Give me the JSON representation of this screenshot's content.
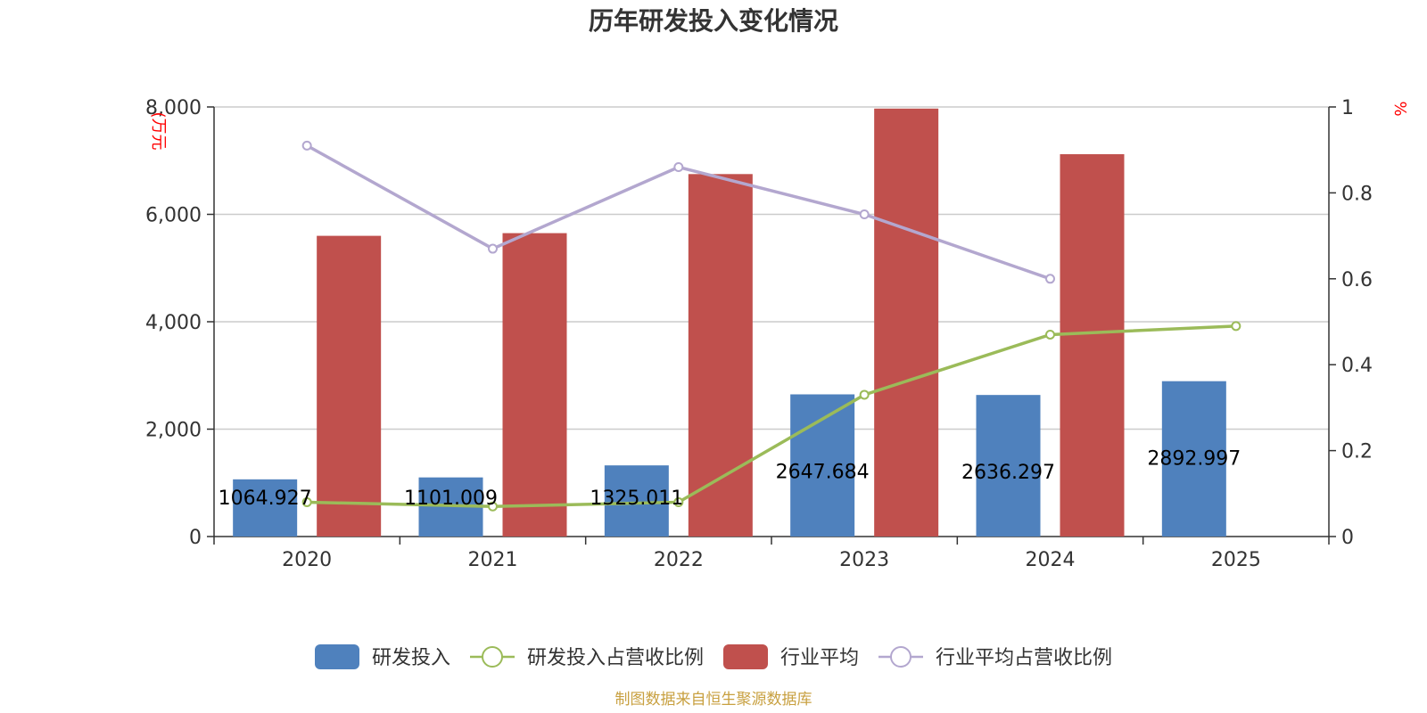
{
  "chart_data": {
    "type": "bar",
    "title": "历年研发投入变化情况",
    "categories": [
      "2020",
      "2021",
      "2022",
      "2023",
      "2024",
      "2025"
    ],
    "y_left": {
      "unit_label": "(万元",
      "ylim": [
        0,
        8000
      ],
      "ticks": [
        "0",
        "2,000",
        "4,000",
        "6,000",
        "8,000"
      ],
      "tick_values": [
        0,
        2000,
        4000,
        6000,
        8000
      ]
    },
    "y_right": {
      "unit_label": "%",
      "ylim": [
        0,
        1
      ],
      "ticks": [
        "0",
        "0.2",
        "0.4",
        "0.6",
        "0.8",
        "1"
      ],
      "tick_values": [
        0,
        0.2,
        0.4,
        0.6,
        0.8,
        1
      ]
    },
    "grid": true,
    "legend_position": "bottom",
    "series": [
      {
        "name": "研发投入",
        "type": "bar",
        "axis": "left",
        "color": "#4f81bd",
        "values": [
          1064.927,
          1101.009,
          1325.011,
          2647.684,
          2636.297,
          2892.997
        ],
        "labels": [
          "1064.927",
          "1101.009",
          "1325.011",
          "2647.684",
          "2636.297",
          "2892.997"
        ]
      },
      {
        "name": "研发投入占营收比例",
        "type": "line",
        "axis": "right",
        "color": "#9bbb59",
        "values": [
          0.08,
          0.07,
          0.08,
          0.33,
          0.47,
          0.49
        ]
      },
      {
        "name": "行业平均",
        "type": "bar",
        "axis": "left",
        "color": "#c0504d",
        "values": [
          5600,
          5650,
          6750,
          7970,
          7120,
          null
        ]
      },
      {
        "name": "行业平均占营收比例",
        "type": "line",
        "axis": "right",
        "color": "#b3a7cf",
        "values": [
          0.91,
          0.67,
          0.86,
          0.75,
          0.6,
          null
        ]
      }
    ]
  },
  "source": "制图数据来自恒生聚源数据库"
}
